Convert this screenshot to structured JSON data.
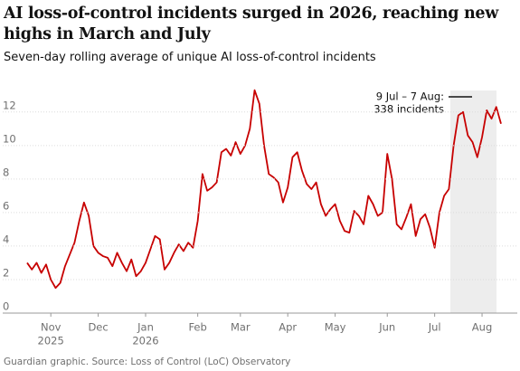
{
  "chart_data": {
    "type": "line",
    "title": "AI loss-of-control incidents surged in 2026, reaching new highs in March and July",
    "subtitle": "Seven-day rolling average of unique AI loss-of-control incidents",
    "source": "Guardian graphic. Source: Loss of Control (LoC) Observatory",
    "annotation": [
      "9 Jul – 7 Aug:",
      "338 incidents"
    ],
    "color": "#c70000",
    "categories": [
      null,
      null,
      null,
      null,
      null,
      "Nov",
      null,
      null,
      null,
      null,
      null,
      null,
      null,
      null,
      null,
      "Dec",
      null,
      null,
      null,
      null,
      null,
      null,
      null,
      null,
      null,
      "Jan",
      null,
      null,
      null,
      null,
      null,
      null,
      null,
      null,
      null,
      null,
      "Feb",
      null,
      null,
      null,
      null,
      null,
      null,
      null,
      null,
      "Mar",
      null,
      null,
      null,
      null,
      null,
      null,
      null,
      null,
      null,
      "Apr",
      null,
      null,
      null,
      null,
      null,
      null,
      null,
      null,
      null,
      "May",
      null,
      null,
      null,
      null,
      null,
      null,
      null,
      null,
      null,
      null,
      "Jun",
      null,
      null,
      null,
      null,
      null,
      null,
      null,
      null,
      null,
      "Jul",
      null,
      null,
      null,
      null,
      null,
      null,
      null,
      null,
      null,
      "Aug",
      null,
      null,
      null,
      null
    ],
    "category_years": [
      null,
      null,
      null,
      null,
      null,
      "2025",
      null,
      null,
      null,
      null,
      null,
      null,
      null,
      null,
      null,
      null,
      null,
      null,
      null,
      null,
      null,
      null,
      null,
      null,
      null,
      "2026",
      null,
      null,
      null,
      null,
      null,
      null,
      null,
      null,
      null,
      null,
      null,
      null,
      null,
      null,
      null,
      null,
      null,
      null,
      null,
      null,
      null,
      null,
      null,
      null,
      null,
      null,
      null,
      null,
      null,
      null,
      null,
      null,
      null,
      null,
      null,
      null,
      null,
      null,
      null,
      null,
      null,
      null,
      null,
      null,
      null,
      null,
      null,
      null,
      null,
      null,
      null,
      null,
      null,
      null,
      null,
      null,
      null,
      null,
      null,
      null,
      null,
      null,
      null,
      null,
      null,
      null,
      null,
      null,
      null,
      null,
      null,
      null,
      null,
      null,
      null
    ],
    "values": [
      3.0,
      2.6,
      3.0,
      2.4,
      2.9,
      2.0,
      1.5,
      1.8,
      2.8,
      3.5,
      4.2,
      5.5,
      6.6,
      5.8,
      4.0,
      3.6,
      3.4,
      3.3,
      2.8,
      3.6,
      3.0,
      2.5,
      3.2,
      2.2,
      2.5,
      3.0,
      3.8,
      4.6,
      4.4,
      2.6,
      3.0,
      3.6,
      4.1,
      3.7,
      4.2,
      3.9,
      5.5,
      8.3,
      7.3,
      7.5,
      7.8,
      9.6,
      9.8,
      9.4,
      10.2,
      9.5,
      10.0,
      11.0,
      13.3,
      12.5,
      10.0,
      8.3,
      8.1,
      7.8,
      6.6,
      7.5,
      9.3,
      9.6,
      8.5,
      7.7,
      7.4,
      7.8,
      6.5,
      5.8,
      6.2,
      6.5,
      5.5,
      4.9,
      4.8,
      6.1,
      5.8,
      5.3,
      7.0,
      6.5,
      5.8,
      6.0,
      9.5,
      8.0,
      5.3,
      5.0,
      5.7,
      6.5,
      4.6,
      5.6,
      5.9,
      5.1,
      3.9,
      6.0,
      7.0,
      7.4,
      10.0,
      11.8,
      12.0,
      10.6,
      10.2,
      9.3,
      10.5,
      12.1,
      11.6,
      12.3,
      11.3
    ],
    "ylim": [
      0,
      13.5
    ],
    "yticks": [
      0,
      2,
      4,
      6,
      8,
      10,
      12
    ],
    "grid": true
  }
}
